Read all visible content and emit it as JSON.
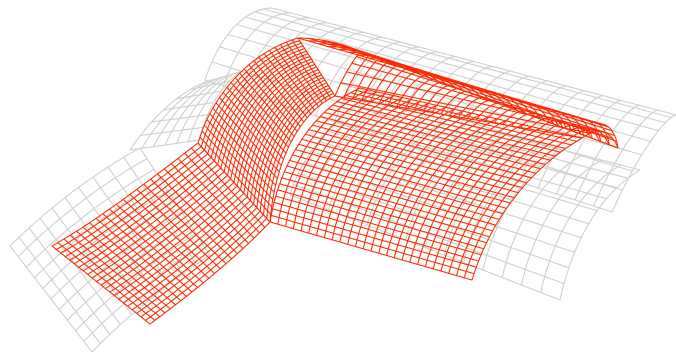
{
  "figure": {
    "type": "3d-wireframe-surface",
    "background_color": "#ffffff",
    "ghost_surface_color": "#cfcfcf",
    "highlighted_surface_color": "#ff2a00",
    "labels": []
  },
  "surfaces": {
    "ghost": {
      "name": "transparent-context-surfaces",
      "description_visible": false
    },
    "highlighted": {
      "name": "red-wireframe-t-junction",
      "description_visible": false
    }
  }
}
